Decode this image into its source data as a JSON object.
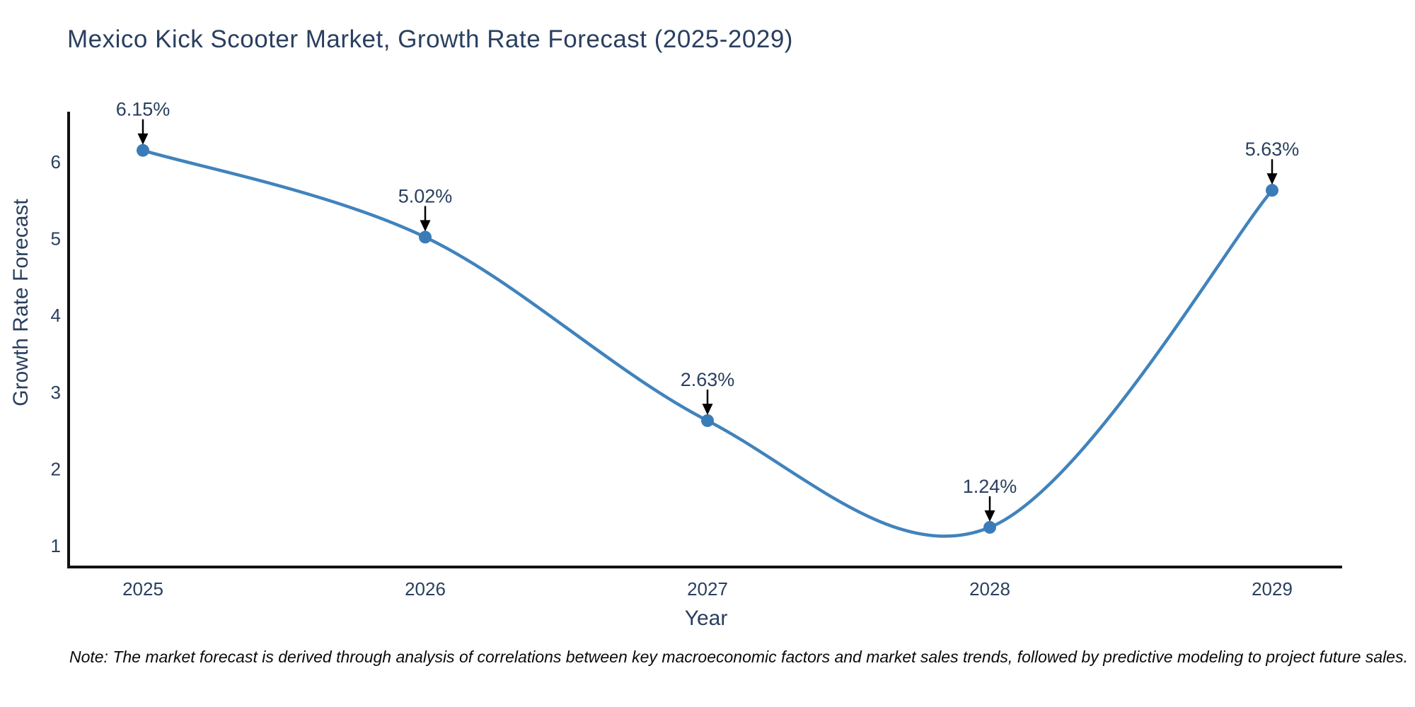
{
  "title": "Mexico Kick Scooter Market, Growth Rate Forecast (2025-2029)",
  "note": "Note: The market forecast is derived through analysis of correlations between key macroeconomic factors and market sales trends, followed by predictive modeling to project future sales.",
  "chart_data": {
    "type": "line",
    "title": "Mexico Kick Scooter Market, Growth Rate Forecast (2025-2029)",
    "xlabel": "Year",
    "ylabel": "Growth Rate Forecast",
    "categories": [
      "2025",
      "2026",
      "2027",
      "2028",
      "2029"
    ],
    "values": [
      6.15,
      5.02,
      2.63,
      1.24,
      5.63
    ],
    "point_labels": [
      "6.15%",
      "5.02%",
      "2.63%",
      "1.24%",
      "5.63%"
    ],
    "yticks": [
      1,
      2,
      3,
      4,
      5,
      6
    ],
    "ylim": [
      0.75,
      6.6
    ],
    "grid": false,
    "legend": false,
    "line_shape": "spline",
    "annotations_have_arrows": true,
    "colors": {
      "line": "#4183bc",
      "marker": "#3a7cb8",
      "text": "#2a3f5f",
      "axis": "#111111",
      "arrow": "#000000",
      "note_text": "#0a0a0a"
    }
  }
}
